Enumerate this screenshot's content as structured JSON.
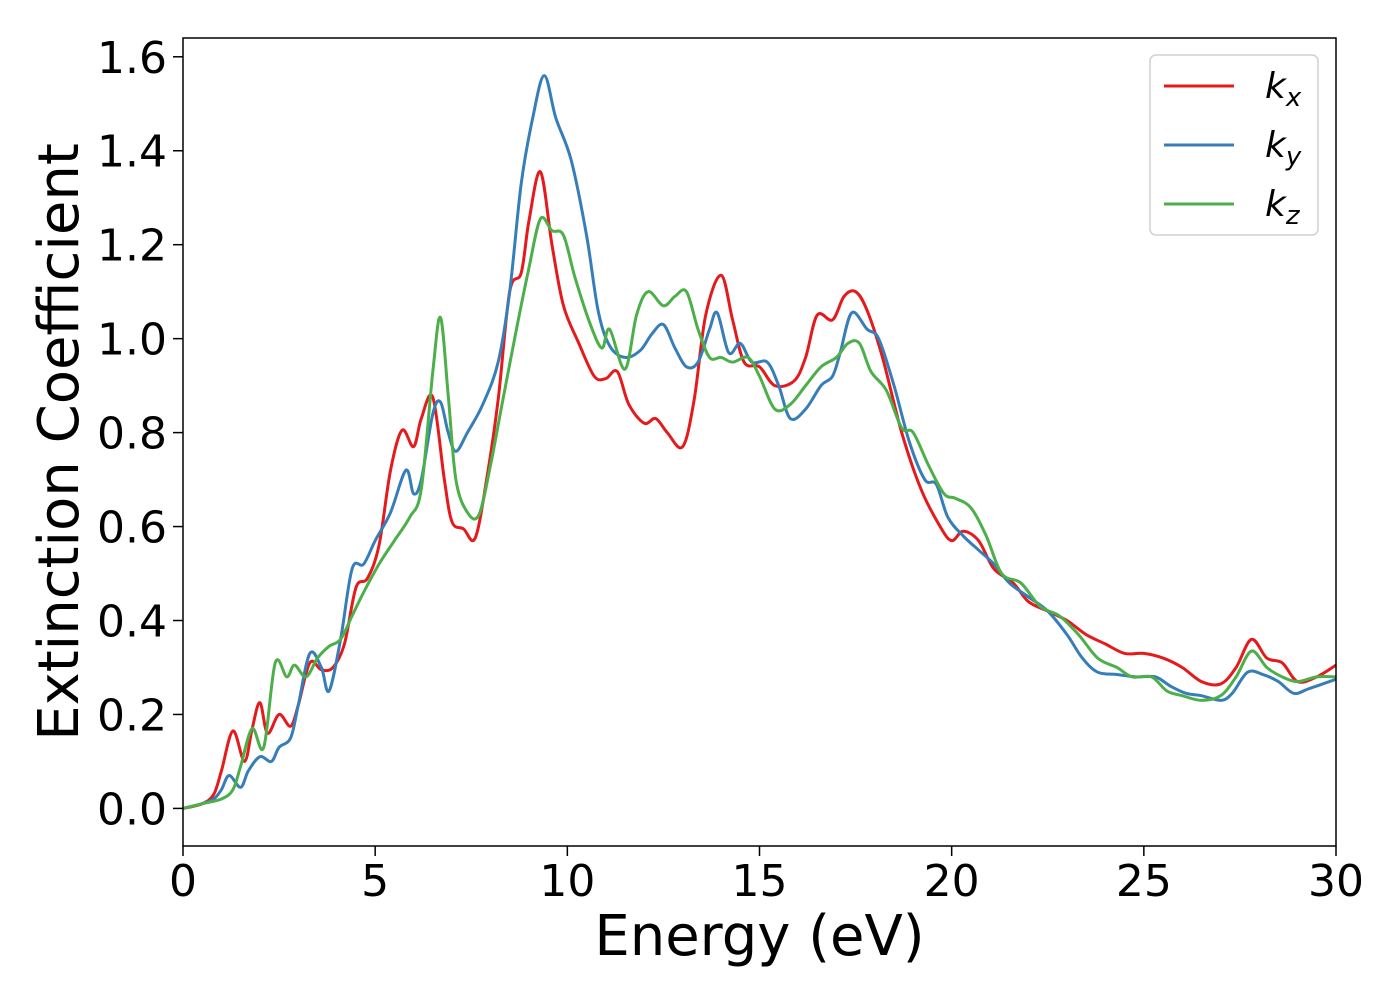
{
  "chart_data": {
    "type": "line",
    "title": "",
    "xlabel": "Energy (eV)",
    "ylabel": "Extinction Coefficient",
    "xlim": [
      0,
      30
    ],
    "ylim": [
      -0.08,
      1.64
    ],
    "xticks": [
      0,
      5,
      10,
      15,
      20,
      25,
      30
    ],
    "xtick_labels": [
      "0",
      "5",
      "10",
      "15",
      "20",
      "25",
      "30"
    ],
    "yticks": [
      0.0,
      0.2,
      0.4,
      0.6,
      0.8,
      1.0,
      1.2,
      1.4,
      1.6
    ],
    "ytick_labels": [
      "0.0",
      "0.2",
      "0.4",
      "0.6",
      "0.8",
      "1.0",
      "1.2",
      "1.4",
      "1.6"
    ],
    "grid": false,
    "legend_position": "top-right",
    "series": [
      {
        "name_base": "k",
        "name_sub": "x",
        "color": "#e41a1c",
        "points": [
          [
            0,
            0
          ],
          [
            0.5,
            0.01
          ],
          [
            0.8,
            0.03
          ],
          [
            1.0,
            0.08
          ],
          [
            1.3,
            0.165
          ],
          [
            1.6,
            0.1
          ],
          [
            1.8,
            0.17
          ],
          [
            2.0,
            0.225
          ],
          [
            2.2,
            0.16
          ],
          [
            2.5,
            0.2
          ],
          [
            2.8,
            0.175
          ],
          [
            3.0,
            0.22
          ],
          [
            3.3,
            0.31
          ],
          [
            3.6,
            0.295
          ],
          [
            3.9,
            0.3
          ],
          [
            4.2,
            0.35
          ],
          [
            4.5,
            0.47
          ],
          [
            4.8,
            0.49
          ],
          [
            5.1,
            0.56
          ],
          [
            5.4,
            0.72
          ],
          [
            5.7,
            0.805
          ],
          [
            6.0,
            0.77
          ],
          [
            6.2,
            0.83
          ],
          [
            6.5,
            0.875
          ],
          [
            6.8,
            0.7
          ],
          [
            7.0,
            0.61
          ],
          [
            7.3,
            0.595
          ],
          [
            7.6,
            0.575
          ],
          [
            7.9,
            0.7
          ],
          [
            8.2,
            0.87
          ],
          [
            8.5,
            1.1
          ],
          [
            8.8,
            1.14
          ],
          [
            9.0,
            1.25
          ],
          [
            9.3,
            1.355
          ],
          [
            9.6,
            1.2
          ],
          [
            9.9,
            1.07
          ],
          [
            10.3,
            0.99
          ],
          [
            10.7,
            0.92
          ],
          [
            11.0,
            0.915
          ],
          [
            11.3,
            0.93
          ],
          [
            11.6,
            0.86
          ],
          [
            12.0,
            0.82
          ],
          [
            12.3,
            0.83
          ],
          [
            12.6,
            0.8
          ],
          [
            13.0,
            0.77
          ],
          [
            13.3,
            0.87
          ],
          [
            13.6,
            1.05
          ],
          [
            14.0,
            1.135
          ],
          [
            14.3,
            1.04
          ],
          [
            14.6,
            0.95
          ],
          [
            15.0,
            0.94
          ],
          [
            15.4,
            0.9
          ],
          [
            15.9,
            0.91
          ],
          [
            16.2,
            0.96
          ],
          [
            16.5,
            1.05
          ],
          [
            16.9,
            1.04
          ],
          [
            17.2,
            1.09
          ],
          [
            17.5,
            1.1
          ],
          [
            17.8,
            1.06
          ],
          [
            18.2,
            0.96
          ],
          [
            18.7,
            0.8
          ],
          [
            19.2,
            0.68
          ],
          [
            19.7,
            0.6
          ],
          [
            20.0,
            0.57
          ],
          [
            20.3,
            0.59
          ],
          [
            20.7,
            0.57
          ],
          [
            21.1,
            0.51
          ],
          [
            21.6,
            0.48
          ],
          [
            22.0,
            0.44
          ],
          [
            22.5,
            0.42
          ],
          [
            23.0,
            0.4
          ],
          [
            23.5,
            0.37
          ],
          [
            24.0,
            0.35
          ],
          [
            24.5,
            0.33
          ],
          [
            25.0,
            0.33
          ],
          [
            25.5,
            0.32
          ],
          [
            26.0,
            0.3
          ],
          [
            26.5,
            0.27
          ],
          [
            27.0,
            0.265
          ],
          [
            27.4,
            0.3
          ],
          [
            27.8,
            0.36
          ],
          [
            28.2,
            0.32
          ],
          [
            28.6,
            0.31
          ],
          [
            29.0,
            0.27
          ],
          [
            29.5,
            0.28
          ],
          [
            30.0,
            0.305
          ]
        ]
      },
      {
        "name_base": "k",
        "name_sub": "y",
        "color": "#377eb8",
        "points": [
          [
            0,
            0
          ],
          [
            0.5,
            0.01
          ],
          [
            0.8,
            0.02
          ],
          [
            1.0,
            0.04
          ],
          [
            1.2,
            0.07
          ],
          [
            1.5,
            0.045
          ],
          [
            1.7,
            0.08
          ],
          [
            2.0,
            0.11
          ],
          [
            2.3,
            0.1
          ],
          [
            2.5,
            0.13
          ],
          [
            2.8,
            0.15
          ],
          [
            3.0,
            0.22
          ],
          [
            3.3,
            0.33
          ],
          [
            3.6,
            0.3
          ],
          [
            3.8,
            0.25
          ],
          [
            4.1,
            0.36
          ],
          [
            4.4,
            0.51
          ],
          [
            4.7,
            0.52
          ],
          [
            5.0,
            0.57
          ],
          [
            5.4,
            0.63
          ],
          [
            5.8,
            0.72
          ],
          [
            6.0,
            0.67
          ],
          [
            6.2,
            0.7
          ],
          [
            6.5,
            0.84
          ],
          [
            6.7,
            0.865
          ],
          [
            6.9,
            0.8
          ],
          [
            7.1,
            0.76
          ],
          [
            7.4,
            0.8
          ],
          [
            7.8,
            0.86
          ],
          [
            8.2,
            0.95
          ],
          [
            8.5,
            1.1
          ],
          [
            8.8,
            1.33
          ],
          [
            9.1,
            1.47
          ],
          [
            9.4,
            1.56
          ],
          [
            9.7,
            1.47
          ],
          [
            10.1,
            1.38
          ],
          [
            10.5,
            1.22
          ],
          [
            10.8,
            1.06
          ],
          [
            11.1,
            0.985
          ],
          [
            11.5,
            0.96
          ],
          [
            11.9,
            0.975
          ],
          [
            12.2,
            1.01
          ],
          [
            12.5,
            1.03
          ],
          [
            12.8,
            0.98
          ],
          [
            13.1,
            0.94
          ],
          [
            13.4,
            0.95
          ],
          [
            13.7,
            1.02
          ],
          [
            13.9,
            1.055
          ],
          [
            14.2,
            0.97
          ],
          [
            14.5,
            0.99
          ],
          [
            14.8,
            0.95
          ],
          [
            15.2,
            0.95
          ],
          [
            15.5,
            0.9
          ],
          [
            15.8,
            0.83
          ],
          [
            16.2,
            0.85
          ],
          [
            16.6,
            0.9
          ],
          [
            16.9,
            0.92
          ],
          [
            17.1,
            0.97
          ],
          [
            17.4,
            1.055
          ],
          [
            17.8,
            1.02
          ],
          [
            18.1,
            1.0
          ],
          [
            18.5,
            0.9
          ],
          [
            18.9,
            0.78
          ],
          [
            19.3,
            0.7
          ],
          [
            19.6,
            0.69
          ],
          [
            19.9,
            0.62
          ],
          [
            20.3,
            0.58
          ],
          [
            20.7,
            0.55
          ],
          [
            21.1,
            0.52
          ],
          [
            21.5,
            0.48
          ],
          [
            22.0,
            0.45
          ],
          [
            22.5,
            0.42
          ],
          [
            23.0,
            0.37
          ],
          [
            23.4,
            0.32
          ],
          [
            23.8,
            0.29
          ],
          [
            24.3,
            0.285
          ],
          [
            24.8,
            0.28
          ],
          [
            25.3,
            0.28
          ],
          [
            25.7,
            0.26
          ],
          [
            26.1,
            0.245
          ],
          [
            26.5,
            0.24
          ],
          [
            27.0,
            0.23
          ],
          [
            27.3,
            0.245
          ],
          [
            27.7,
            0.29
          ],
          [
            28.1,
            0.285
          ],
          [
            28.5,
            0.27
          ],
          [
            28.9,
            0.245
          ],
          [
            29.3,
            0.255
          ],
          [
            30.0,
            0.275
          ]
        ]
      },
      {
        "name_base": "k",
        "name_sub": "z",
        "color": "#4daf4a",
        "points": [
          [
            0,
            0
          ],
          [
            0.5,
            0.01
          ],
          [
            1.0,
            0.02
          ],
          [
            1.3,
            0.04
          ],
          [
            1.5,
            0.09
          ],
          [
            1.8,
            0.17
          ],
          [
            2.1,
            0.13
          ],
          [
            2.4,
            0.31
          ],
          [
            2.7,
            0.28
          ],
          [
            2.9,
            0.305
          ],
          [
            3.2,
            0.28
          ],
          [
            3.5,
            0.32
          ],
          [
            3.8,
            0.345
          ],
          [
            4.1,
            0.36
          ],
          [
            4.4,
            0.41
          ],
          [
            4.7,
            0.46
          ],
          [
            5.1,
            0.52
          ],
          [
            5.5,
            0.57
          ],
          [
            5.9,
            0.62
          ],
          [
            6.2,
            0.68
          ],
          [
            6.5,
            0.93
          ],
          [
            6.7,
            1.045
          ],
          [
            6.9,
            0.88
          ],
          [
            7.1,
            0.7
          ],
          [
            7.4,
            0.63
          ],
          [
            7.7,
            0.625
          ],
          [
            8.0,
            0.73
          ],
          [
            8.3,
            0.86
          ],
          [
            8.7,
            1.03
          ],
          [
            9.0,
            1.15
          ],
          [
            9.3,
            1.255
          ],
          [
            9.6,
            1.23
          ],
          [
            9.9,
            1.22
          ],
          [
            10.2,
            1.13
          ],
          [
            10.6,
            1.03
          ],
          [
            10.9,
            0.98
          ],
          [
            11.1,
            1.02
          ],
          [
            11.5,
            0.935
          ],
          [
            11.8,
            1.05
          ],
          [
            12.1,
            1.1
          ],
          [
            12.5,
            1.07
          ],
          [
            12.8,
            1.09
          ],
          [
            13.1,
            1.1
          ],
          [
            13.4,
            1.02
          ],
          [
            13.7,
            0.96
          ],
          [
            14.0,
            0.96
          ],
          [
            14.3,
            0.95
          ],
          [
            14.7,
            0.96
          ],
          [
            15.0,
            0.92
          ],
          [
            15.4,
            0.85
          ],
          [
            15.8,
            0.86
          ],
          [
            16.2,
            0.9
          ],
          [
            16.6,
            0.94
          ],
          [
            17.0,
            0.96
          ],
          [
            17.3,
            0.99
          ],
          [
            17.6,
            0.99
          ],
          [
            17.9,
            0.93
          ],
          [
            18.3,
            0.89
          ],
          [
            18.7,
            0.81
          ],
          [
            19.0,
            0.8
          ],
          [
            19.4,
            0.73
          ],
          [
            19.8,
            0.67
          ],
          [
            20.1,
            0.66
          ],
          [
            20.5,
            0.64
          ],
          [
            20.9,
            0.58
          ],
          [
            21.3,
            0.5
          ],
          [
            21.8,
            0.48
          ],
          [
            22.3,
            0.43
          ],
          [
            22.8,
            0.41
          ],
          [
            23.3,
            0.37
          ],
          [
            23.8,
            0.32
          ],
          [
            24.3,
            0.3
          ],
          [
            24.7,
            0.28
          ],
          [
            25.2,
            0.28
          ],
          [
            25.6,
            0.25
          ],
          [
            26.0,
            0.24
          ],
          [
            26.5,
            0.23
          ],
          [
            27.0,
            0.24
          ],
          [
            27.4,
            0.28
          ],
          [
            27.8,
            0.335
          ],
          [
            28.2,
            0.3
          ],
          [
            28.6,
            0.28
          ],
          [
            29.0,
            0.27
          ],
          [
            29.5,
            0.28
          ],
          [
            30.0,
            0.28
          ]
        ]
      }
    ]
  }
}
